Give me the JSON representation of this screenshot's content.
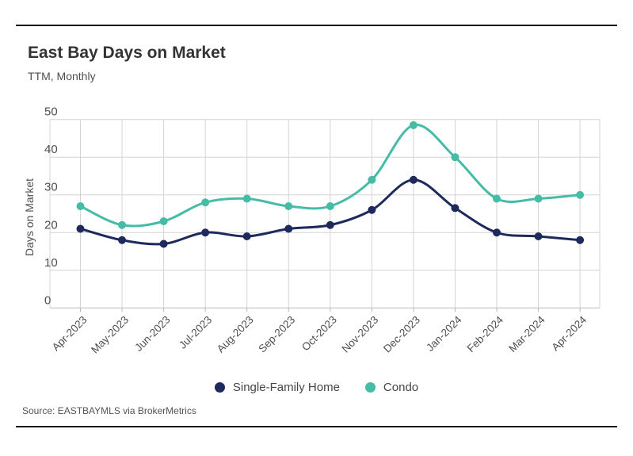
{
  "header": {
    "title": "East Bay Days on Market",
    "subtitle": "TTM, Monthly"
  },
  "chart_data": {
    "type": "line",
    "title": "East Bay Days on Market",
    "subtitle": "TTM, Monthly",
    "x_categories": [
      "Apr-2023",
      "May-2023",
      "Jun-2023",
      "Jul-2023",
      "Aug-2023",
      "Sep-2023",
      "Oct-2023",
      "Nov-2023",
      "Dec-2023",
      "Jan-2024",
      "Feb-2024",
      "Mar-2024",
      "Apr-2024"
    ],
    "xlabel": "",
    "ylabel": "Days on Market",
    "ylim": [
      0,
      50
    ],
    "y_ticks": [
      0,
      10,
      20,
      30,
      40,
      50
    ],
    "grid": true,
    "legend_position": "bottom-center",
    "series": [
      {
        "name": "Single-Family Home",
        "color": "#1F2A5C",
        "values": [
          21,
          18,
          17,
          20,
          19,
          21,
          22,
          26,
          34,
          26.5,
          20,
          19,
          18
        ]
      },
      {
        "name": "Condo",
        "color": "#45BCA5",
        "values": [
          27,
          22,
          23,
          28,
          29,
          27,
          27,
          34,
          48.5,
          40,
          29,
          29,
          30
        ]
      }
    ],
    "grid_color": "#D4D4D4",
    "baseline_color": "#B9B9B9",
    "axis_text_color": "#4F4F4F"
  },
  "footer": {
    "source": "Source:  EASTBAYMLS via BrokerMetrics"
  }
}
